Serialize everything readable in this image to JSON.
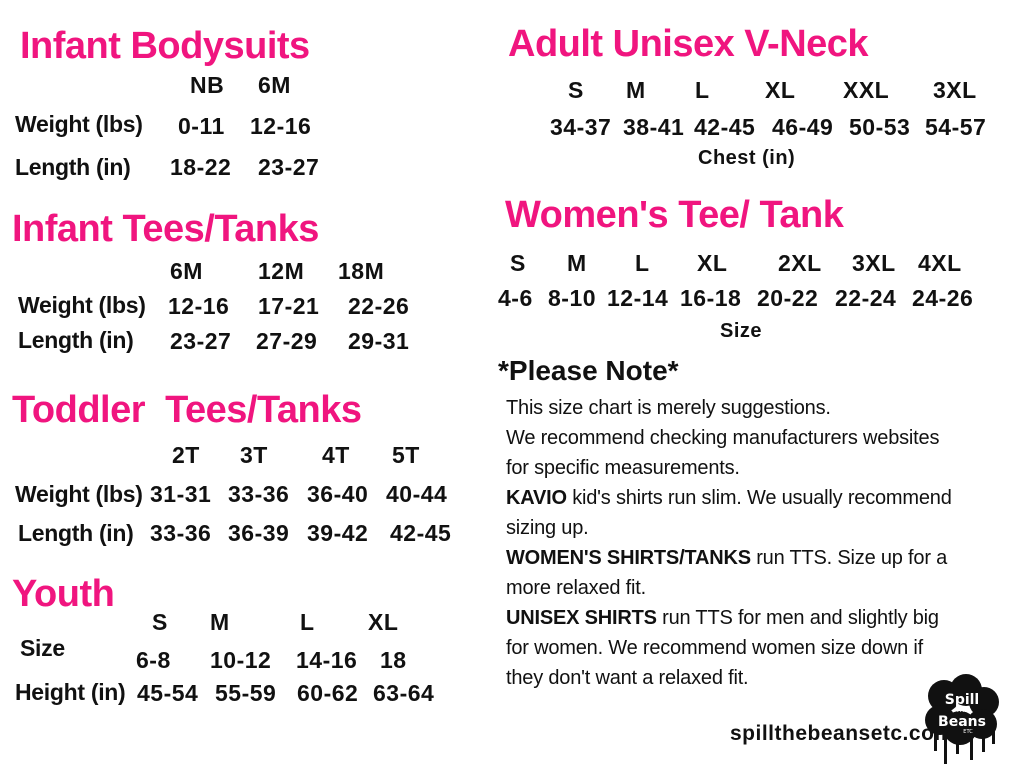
{
  "colors": {
    "heading": "#f0157f",
    "text": "#111111"
  },
  "infant_bodysuits": {
    "title": "Infant Bodysuits",
    "sizes": [
      "NB",
      "6M"
    ],
    "rows": [
      {
        "label": "Weight (lbs)",
        "values": [
          "0-11",
          "12-16"
        ]
      },
      {
        "label": "Length (in)",
        "values": [
          "18-22",
          "23-27"
        ]
      }
    ]
  },
  "infant_tees": {
    "title": "Infant Tees/Tanks",
    "sizes": [
      "6M",
      "12M",
      "18M"
    ],
    "rows": [
      {
        "label": "Weight (lbs)",
        "values": [
          "12-16",
          "17-21",
          "22-26"
        ]
      },
      {
        "label": "Length (in)",
        "values": [
          "23-27",
          "27-29",
          "29-31"
        ]
      }
    ]
  },
  "toddler_tees": {
    "title": "Toddler  Tees/Tanks",
    "sizes": [
      "2T",
      "3T",
      "4T",
      "5T"
    ],
    "rows": [
      {
        "label": "Weight (lbs)",
        "values": [
          "31-31",
          "33-36",
          "36-40",
          "40-44"
        ]
      },
      {
        "label": "Length (in)",
        "values": [
          "33-36",
          "36-39",
          "39-42",
          "42-45"
        ]
      }
    ]
  },
  "youth": {
    "title": "Youth",
    "sizes": [
      "S",
      "M",
      "L",
      "XL"
    ],
    "rows": [
      {
        "label": "Size",
        "values": [
          "6-8",
          "10-12",
          "14-16",
          "18"
        ]
      },
      {
        "label": "Height (in)",
        "values": [
          "45-54",
          "55-59",
          "60-62",
          "63-64"
        ]
      }
    ]
  },
  "adult_vneck": {
    "title": "Adult Unisex V-Neck",
    "sizes": [
      "S",
      "M",
      "L",
      "XL",
      "XXL",
      "3XL"
    ],
    "values": [
      "34-37",
      "38-41",
      "42-45",
      "46-49",
      "50-53",
      "54-57"
    ],
    "caption": "Chest (in)"
  },
  "womens_tee": {
    "title": "Women's Tee/ Tank",
    "sizes": [
      "S",
      "M",
      "L",
      "XL",
      "2XL",
      "3XL",
      "4XL"
    ],
    "values": [
      "4-6",
      "8-10",
      "12-14",
      "16-18",
      "20-22",
      "22-24",
      "24-26"
    ],
    "caption": "Size"
  },
  "note": {
    "title": "*Please Note*",
    "lines": [
      {
        "bold": "",
        "text": "This size chart is merely suggestions."
      },
      {
        "bold": "",
        "text": "We recommend checking manufacturers websites"
      },
      {
        "bold": "",
        "text": "for specific measurements."
      },
      {
        "bold": "KAVIO",
        "text": " kid's shirts run slim. We usually recommend"
      },
      {
        "bold": "",
        "text": "sizing up."
      },
      {
        "bold": "WOMEN'S SHIRTS/TANKS",
        "text": " run TTS. Size up for a"
      },
      {
        "bold": "",
        "text": "more relaxed fit."
      },
      {
        "bold": "UNISEX SHIRTS",
        "text": " run TTS for men and slightly big"
      },
      {
        "bold": "",
        "text": "for women. We recommend women size down if"
      },
      {
        "bold": "",
        "text": "they don't want a relaxed fit."
      }
    ]
  },
  "footer": {
    "website": "spillthebeansetc.com",
    "logo_text": "Spill The Beans Etc"
  }
}
